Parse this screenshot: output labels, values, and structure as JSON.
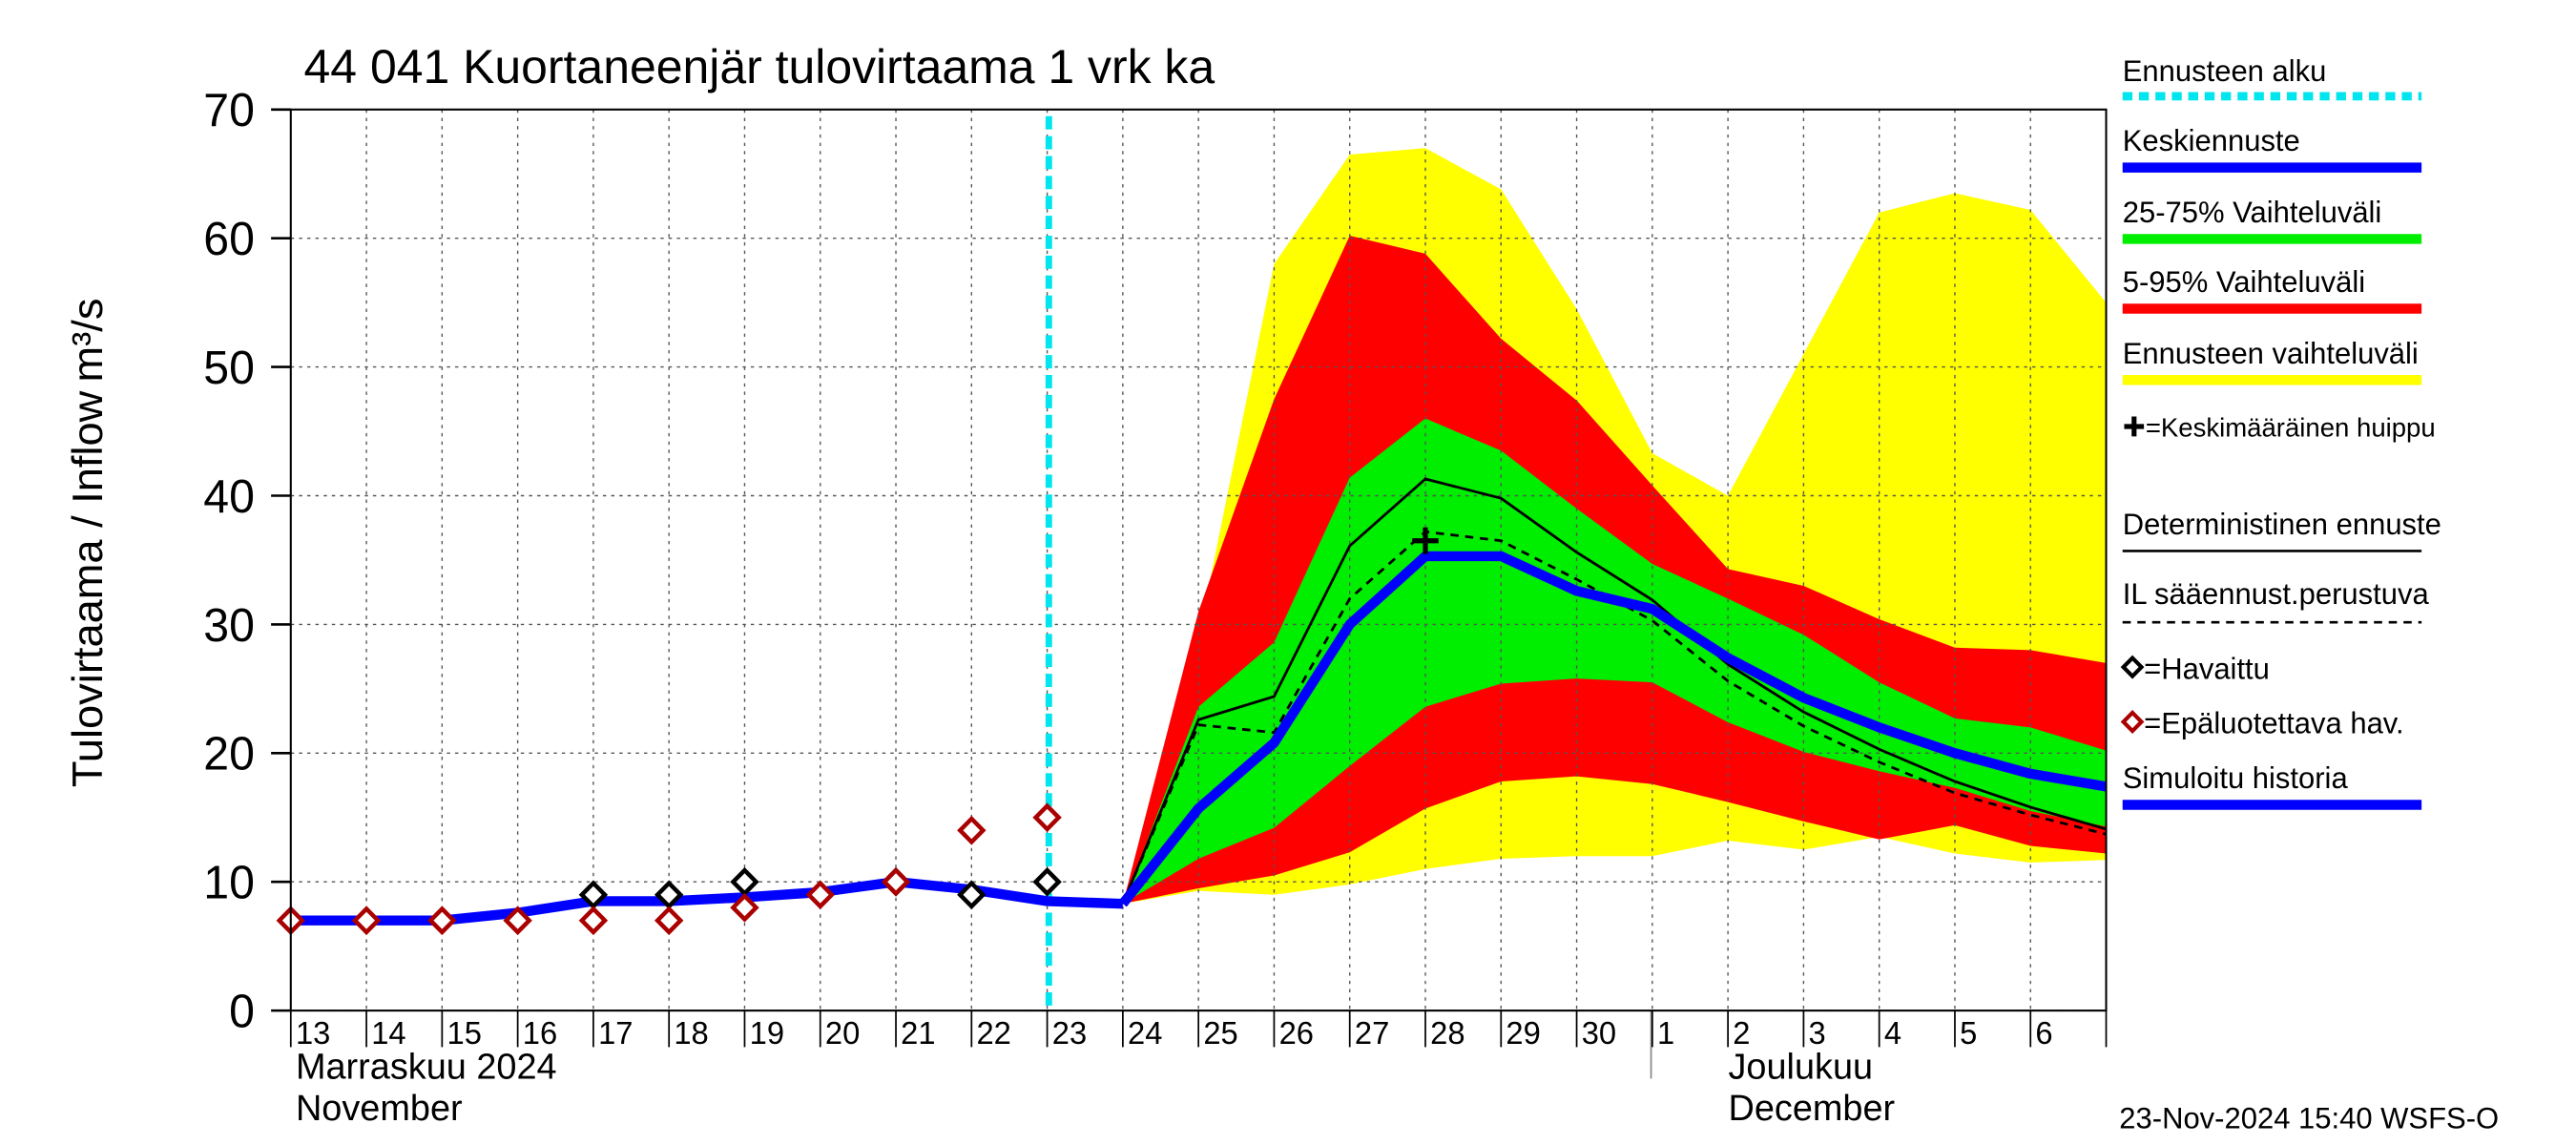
{
  "chart_data": {
    "type": "forecast-band",
    "title": "44 041 Kuortaneenjär tulovirtaama 1 vrk ka",
    "ylabel": "Tulovirtaama / Inflow",
    "yunit": "m³/s",
    "categories": [
      "13",
      "14",
      "15",
      "16",
      "17",
      "18",
      "19",
      "20",
      "21",
      "22",
      "23",
      "24",
      "25",
      "26",
      "27",
      "28",
      "29",
      "30",
      "1",
      "2",
      "3",
      "4",
      "5",
      "6",
      null
    ],
    "months": [
      {
        "fi": "Marraskuu 2024",
        "en": "November"
      },
      {
        "fi": "Joulukuu",
        "en": "December"
      }
    ],
    "ylim": [
      0,
      70
    ],
    "yticks": [
      0,
      10,
      20,
      30,
      40,
      50,
      60,
      70
    ],
    "grid": true,
    "forecast_start": {
      "name": "Ennusteen alku",
      "category": "23",
      "color": "#00e5ee"
    },
    "mean_peak": {
      "name": "=Keskimääräinen huippu",
      "category": "28",
      "value": 36.5,
      "color": "#000000"
    },
    "series": [
      {
        "name": "Ennusteen vaihteluväli",
        "kind": "band",
        "color": "#ffff00",
        "low": [
          null,
          null,
          null,
          null,
          null,
          null,
          null,
          null,
          null,
          null,
          null,
          8.3,
          9.3,
          9.0,
          9.8,
          11.0,
          11.8,
          12.0,
          12.0,
          13.2,
          12.5,
          13.5,
          12.2,
          11.5,
          11.7
        ],
        "high": [
          null,
          null,
          null,
          null,
          null,
          null,
          null,
          null,
          null,
          null,
          null,
          8.3,
          29,
          58,
          66.5,
          67,
          63.8,
          54.5,
          43.3,
          40,
          51,
          62,
          63.5,
          62.2,
          55
        ]
      },
      {
        "name": "5-95% Vaihteluväli",
        "kind": "band",
        "color": "#ff0000",
        "low": [
          null,
          null,
          null,
          null,
          null,
          null,
          null,
          null,
          null,
          null,
          null,
          8.3,
          9.5,
          10.5,
          12.3,
          15.7,
          17.8,
          18.2,
          17.6,
          16.2,
          14.7,
          13.3,
          14.4,
          12.8,
          12.2
        ],
        "high": [
          null,
          null,
          null,
          null,
          null,
          null,
          null,
          null,
          null,
          null,
          null,
          8.3,
          31,
          47.5,
          60.2,
          58.8,
          52.2,
          47.4,
          40.8,
          34.3,
          33.0,
          30.4,
          28.2,
          28.0,
          27.0
        ]
      },
      {
        "name": "25-75% Vaihteluväli",
        "kind": "band",
        "color": "#00ee00",
        "low": [
          null,
          null,
          null,
          null,
          null,
          null,
          null,
          null,
          null,
          null,
          null,
          8.3,
          11.8,
          14.2,
          19.0,
          23.6,
          25.4,
          25.8,
          25.5,
          22.4,
          20.1,
          18.6,
          17.3,
          15.5,
          14.3
        ],
        "high": [
          null,
          null,
          null,
          null,
          null,
          null,
          null,
          null,
          null,
          null,
          null,
          8.3,
          23.6,
          28.6,
          41.4,
          46,
          43.5,
          39,
          34.7,
          32.0,
          29.2,
          25.5,
          22.7,
          22,
          20.2
        ]
      },
      {
        "name": "Deterministinen ennuste",
        "kind": "line",
        "color": "#000000",
        "values": [
          null,
          null,
          null,
          null,
          null,
          null,
          null,
          null,
          null,
          null,
          null,
          8.3,
          22.6,
          24.4,
          36.1,
          41.3,
          39.8,
          35.6,
          31.9,
          26.9,
          23.2,
          20.3,
          17.8,
          15.8,
          14.1
        ]
      },
      {
        "name": "IL sääennust.perustuva",
        "kind": "dashed",
        "color": "#000000",
        "values": [
          null,
          null,
          null,
          null,
          null,
          null,
          null,
          null,
          null,
          null,
          null,
          8.3,
          22.2,
          21.6,
          32.0,
          37.2,
          36.5,
          33.5,
          30.3,
          25.6,
          22.1,
          19.3,
          16.9,
          15.2,
          13.7
        ]
      },
      {
        "name": "Simuloitu historia",
        "kind": "thick",
        "color": "#0000ff",
        "values": [
          7,
          7,
          7,
          7.6,
          8.5,
          8.5,
          8.8,
          9.2,
          10,
          9.4,
          8.5,
          8.3,
          null,
          null,
          null,
          null,
          null,
          null,
          null,
          null,
          null,
          null,
          null,
          null,
          null
        ]
      },
      {
        "name": "Keskiennuste",
        "kind": "thick",
        "color": "#0000ff",
        "values": [
          null,
          null,
          null,
          null,
          null,
          null,
          null,
          null,
          null,
          null,
          null,
          8.3,
          15.7,
          20.8,
          30,
          35.3,
          35.3,
          32.6,
          31.2,
          27.4,
          24.3,
          22,
          20,
          18.4,
          17.4
        ]
      },
      {
        "name": "=Havaittu",
        "kind": "markers",
        "color": "#000000",
        "values": [
          null,
          null,
          null,
          null,
          9,
          9,
          10,
          null,
          10,
          9,
          10,
          null,
          null,
          null,
          null,
          null,
          null,
          null,
          null,
          null,
          null,
          null,
          null,
          null,
          null
        ]
      },
      {
        "name": "=Epäluotettava hav.",
        "kind": "markers",
        "color": "#aa0000",
        "values": [
          7,
          7,
          7,
          7,
          7,
          7,
          8,
          9,
          10,
          14,
          15,
          null,
          null,
          null,
          null,
          null,
          null,
          null,
          null,
          null,
          null,
          null,
          null,
          null,
          null
        ]
      }
    ],
    "footer": "23-Nov-2024 15:40 WSFS-O"
  }
}
